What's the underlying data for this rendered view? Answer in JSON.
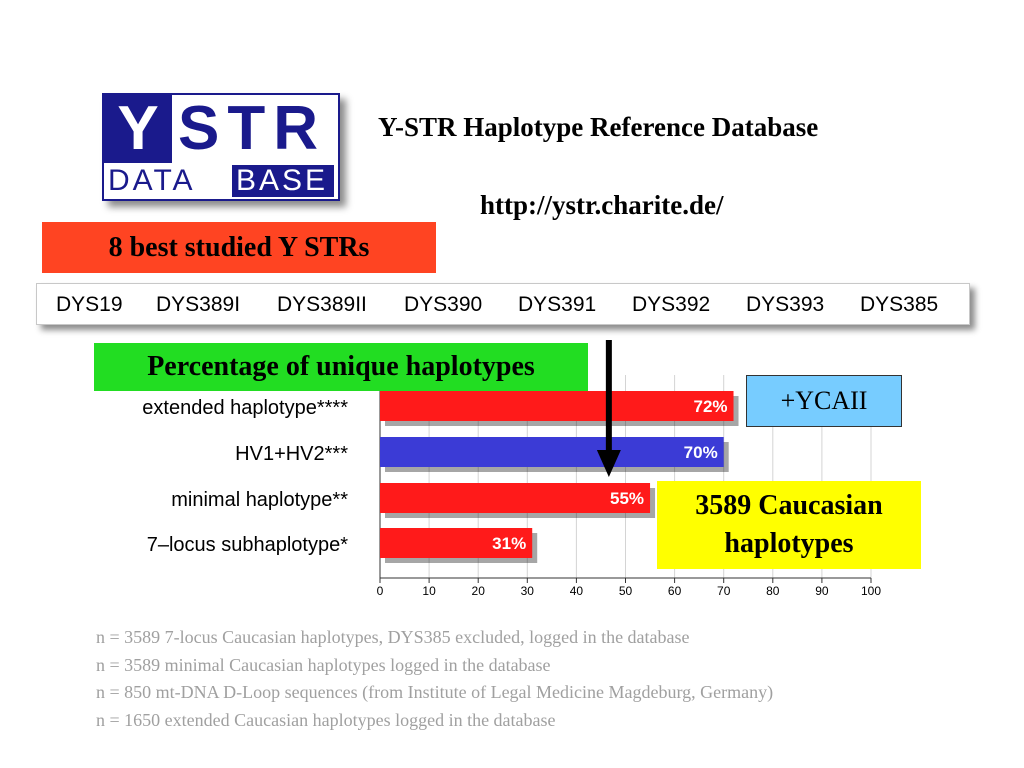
{
  "logo": {
    "y": "Y",
    "str": "STR",
    "data": "DATA",
    "base": "BASE"
  },
  "header": {
    "title": "Y-STR Haplotype Reference Database",
    "url": "http://ystr.charite.de/"
  },
  "best_box": "8 best studied Y STRs",
  "str_loci": [
    "DYS19",
    "DYS389I",
    "DYS389II",
    "DYS390",
    "DYS391",
    "DYS392",
    "DYS393",
    "DYS385"
  ],
  "pct_box": "Percentage of unique haplotypes",
  "ycaii_box": "+YCAII",
  "caucasian_box": {
    "line1": "3589 Caucasian",
    "line2": "haplotypes"
  },
  "colors": {
    "red_bar": "#ff1a1a",
    "blue_bar": "#3b3bd6",
    "best_box": "#ff4422",
    "pct_box": "#22dd22",
    "ycaii_box": "#77ccff",
    "caucasian_box": "#ffff00"
  },
  "chart_data": {
    "type": "bar",
    "orientation": "horizontal",
    "categories": [
      "extended haplotype****",
      "HV1+HV2***",
      "minimal haplotype**",
      "7–locus subhaplotype*"
    ],
    "values": [
      72,
      70,
      55,
      31
    ],
    "data_labels": [
      "72%",
      "70%",
      "55%",
      "31%"
    ],
    "bar_colors": [
      "#ff1a1a",
      "#3b3bd6",
      "#ff1a1a",
      "#ff1a1a"
    ],
    "xlim": [
      0,
      100
    ],
    "xticks": [
      0,
      10,
      20,
      30,
      40,
      50,
      60,
      70,
      80,
      90,
      100
    ],
    "grid": true,
    "marker_value": 46
  },
  "notes": [
    "n = 3589 7-locus Caucasian haplotypes, DYS385 excluded, logged in the database",
    "n = 3589 minimal Caucasian haplotypes logged in the database",
    "n = 850 mt-DNA D-Loop sequences (from Institute of Legal Medicine Magdeburg, Germany)",
    "n = 1650 extended Caucasian haplotypes logged in the database"
  ]
}
